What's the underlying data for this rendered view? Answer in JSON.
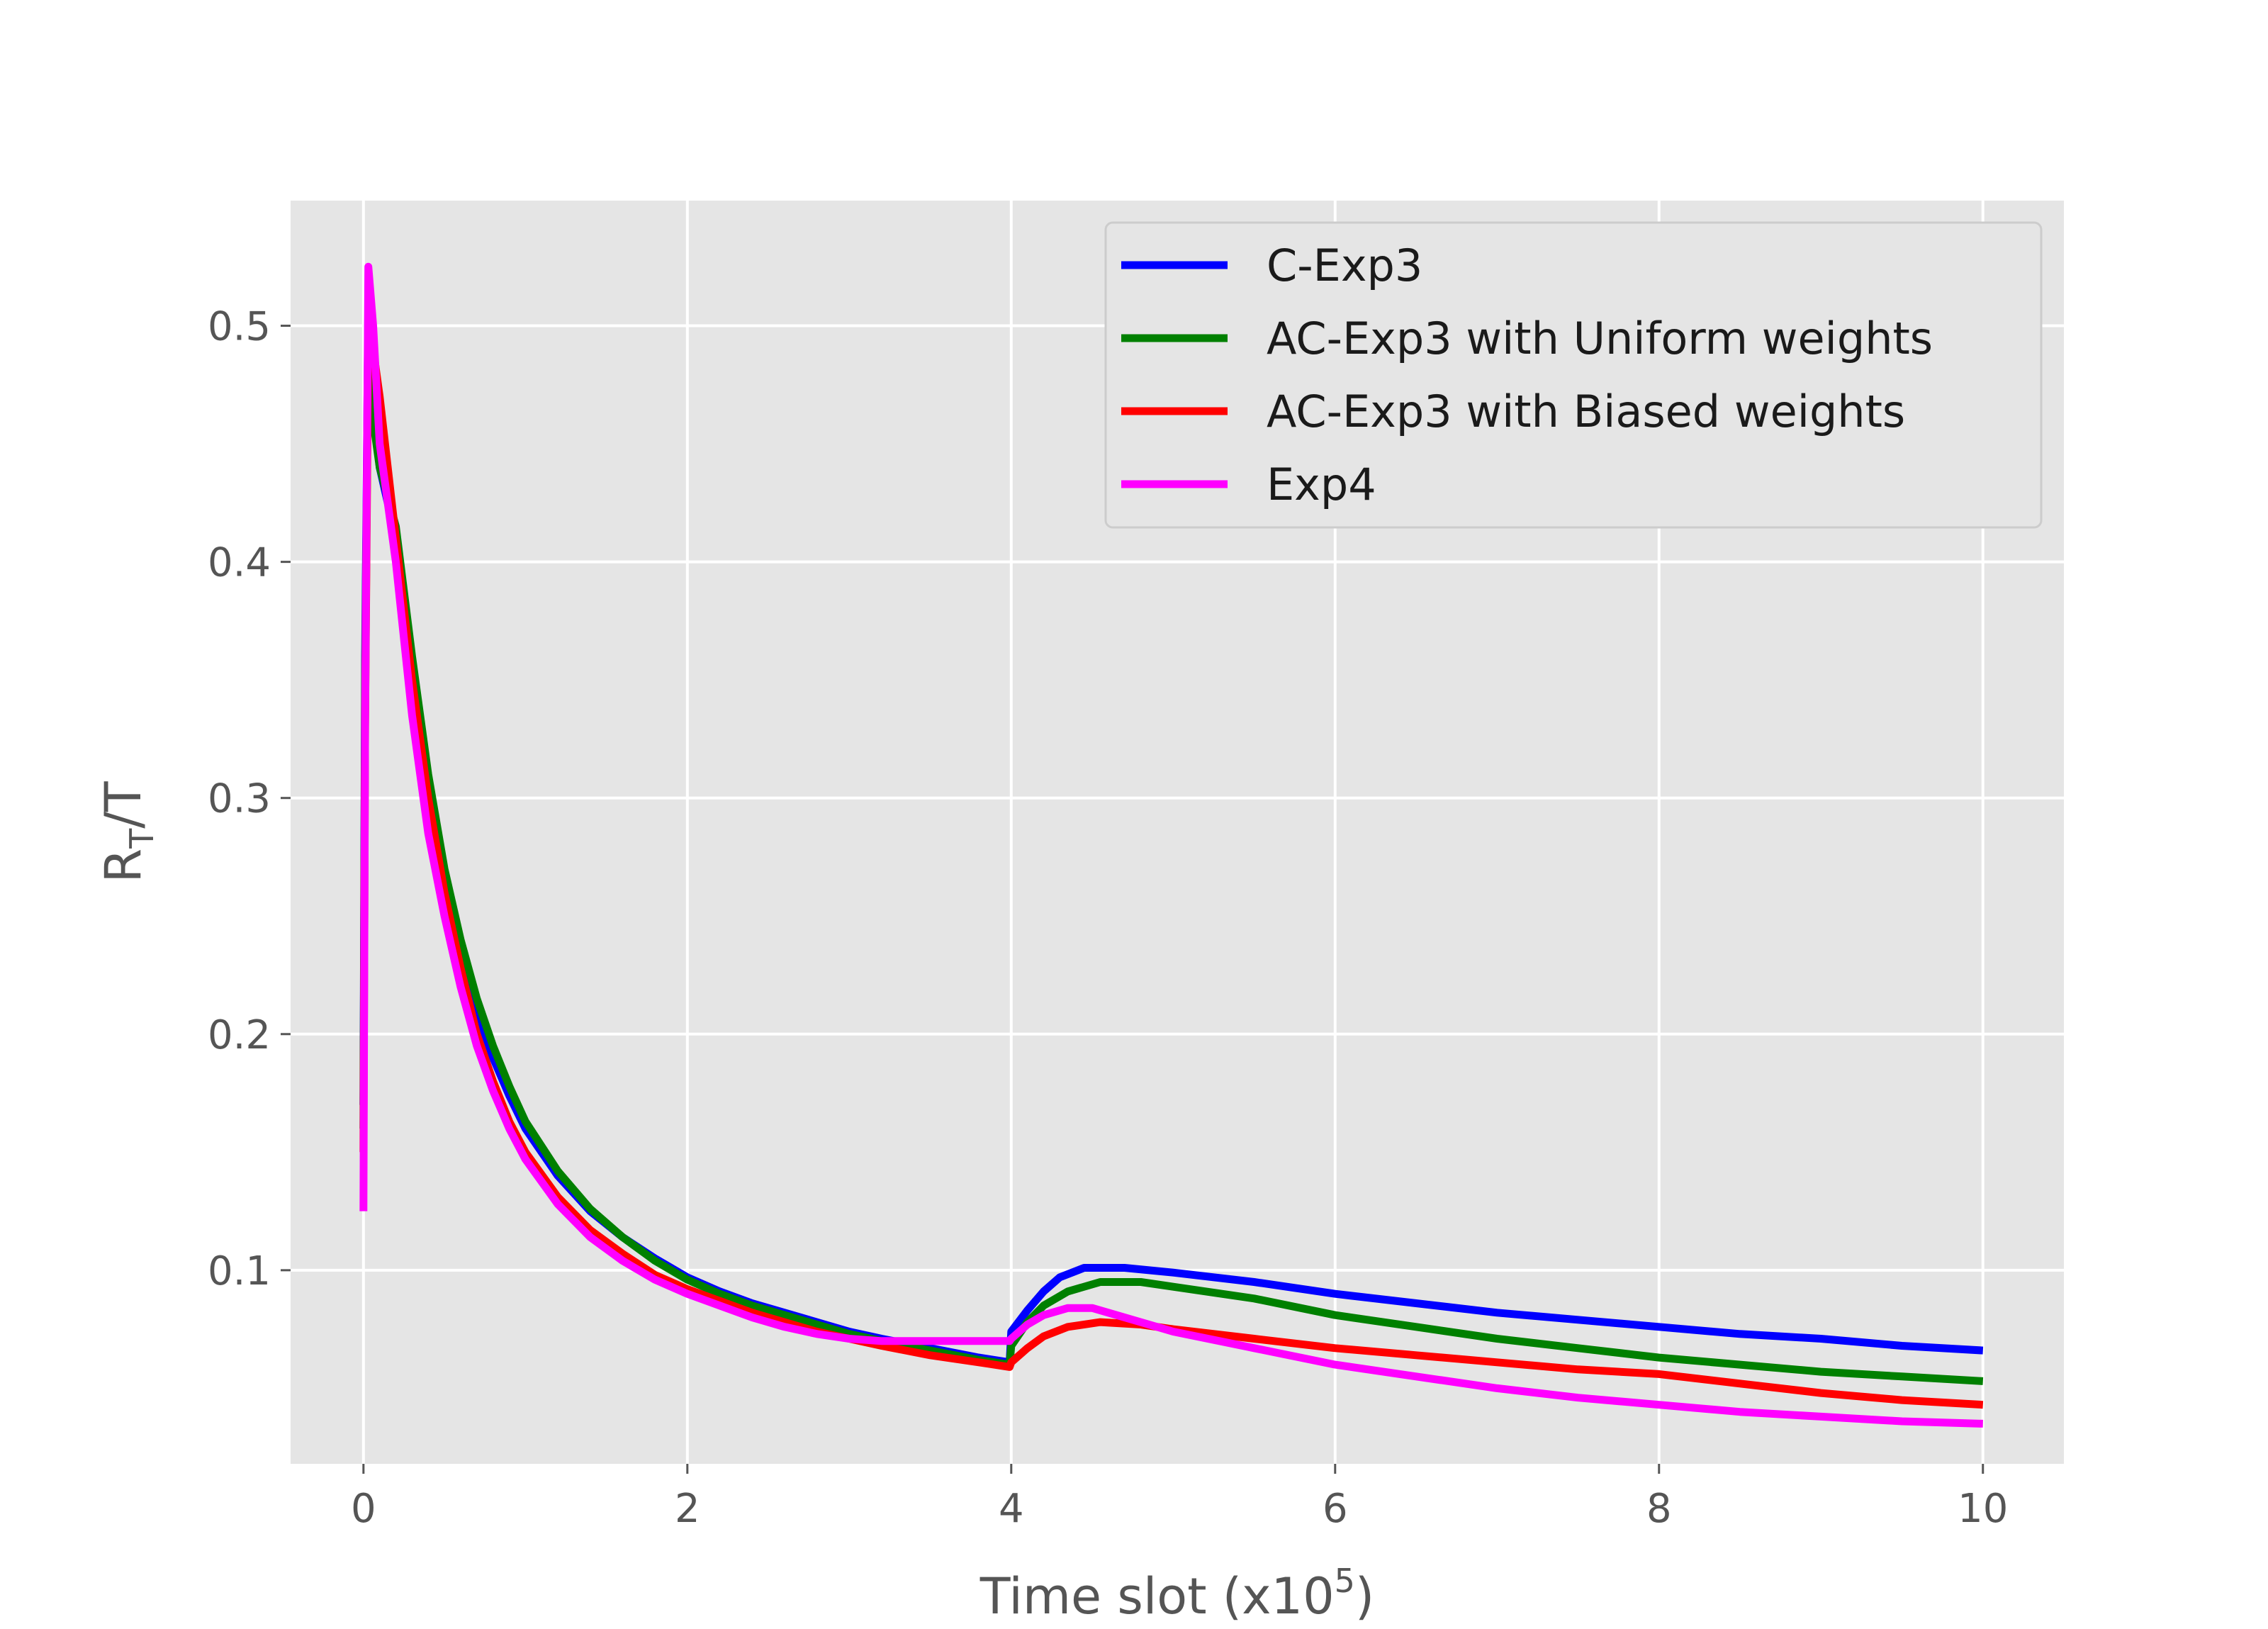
{
  "chart_data": {
    "type": "line",
    "xlabel_parts": {
      "main": "Time slot (x10",
      "sup": "5",
      "tail": ")"
    },
    "ylabel_parts": {
      "main": "R",
      "sub": "T",
      "tail": "/T"
    },
    "xlim": [
      -0.45,
      10.5
    ],
    "ylim": [
      0.018,
      0.553
    ],
    "xticks": [
      0,
      2,
      4,
      6,
      8,
      10
    ],
    "xtick_labels": [
      "0",
      "2",
      "4",
      "6",
      "8",
      "10"
    ],
    "yticks": [
      0.1,
      0.2,
      0.3,
      0.4,
      0.5
    ],
    "ytick_labels": [
      "0.1",
      "0.2",
      "0.3",
      "0.4",
      "0.5"
    ],
    "grid": true,
    "legend_position": "top-right",
    "series": [
      {
        "name": "C-Exp3",
        "color": "#0000ff",
        "points": [
          [
            0,
            0.17
          ],
          [
            0.01,
            0.36
          ],
          [
            0.03,
            0.51
          ],
          [
            0.06,
            0.47
          ],
          [
            0.1,
            0.44
          ],
          [
            0.2,
            0.41
          ],
          [
            0.3,
            0.35
          ],
          [
            0.4,
            0.3
          ],
          [
            0.5,
            0.265
          ],
          [
            0.6,
            0.235
          ],
          [
            0.7,
            0.21
          ],
          [
            0.8,
            0.19
          ],
          [
            0.9,
            0.174
          ],
          [
            1.0,
            0.16
          ],
          [
            1.2,
            0.14
          ],
          [
            1.4,
            0.125
          ],
          [
            1.6,
            0.114
          ],
          [
            1.8,
            0.105
          ],
          [
            2.0,
            0.097
          ],
          [
            2.2,
            0.091
          ],
          [
            2.4,
            0.086
          ],
          [
            2.6,
            0.082
          ],
          [
            2.8,
            0.078
          ],
          [
            3.0,
            0.074
          ],
          [
            3.2,
            0.071
          ],
          [
            3.5,
            0.067
          ],
          [
            3.8,
            0.063
          ],
          [
            3.99,
            0.061
          ],
          [
            4.0,
            0.074
          ],
          [
            4.1,
            0.083
          ],
          [
            4.2,
            0.091
          ],
          [
            4.3,
            0.097
          ],
          [
            4.45,
            0.101
          ],
          [
            4.7,
            0.101
          ],
          [
            5.0,
            0.099
          ],
          [
            5.5,
            0.095
          ],
          [
            6.0,
            0.09
          ],
          [
            6.5,
            0.086
          ],
          [
            7.0,
            0.082
          ],
          [
            7.5,
            0.079
          ],
          [
            8.0,
            0.076
          ],
          [
            8.5,
            0.073
          ],
          [
            9.0,
            0.071
          ],
          [
            9.5,
            0.068
          ],
          [
            10.0,
            0.066
          ]
        ]
      },
      {
        "name": "AC-Exp3 with Uniform weights",
        "color": "#008000",
        "points": [
          [
            0,
            0.16
          ],
          [
            0.01,
            0.35
          ],
          [
            0.03,
            0.5
          ],
          [
            0.06,
            0.46
          ],
          [
            0.1,
            0.44
          ],
          [
            0.2,
            0.415
          ],
          [
            0.3,
            0.36
          ],
          [
            0.4,
            0.31
          ],
          [
            0.5,
            0.27
          ],
          [
            0.6,
            0.24
          ],
          [
            0.7,
            0.215
          ],
          [
            0.8,
            0.195
          ],
          [
            0.9,
            0.178
          ],
          [
            1.0,
            0.163
          ],
          [
            1.2,
            0.142
          ],
          [
            1.4,
            0.126
          ],
          [
            1.6,
            0.114
          ],
          [
            1.8,
            0.104
          ],
          [
            2.0,
            0.096
          ],
          [
            2.2,
            0.09
          ],
          [
            2.4,
            0.085
          ],
          [
            2.6,
            0.081
          ],
          [
            2.8,
            0.077
          ],
          [
            3.0,
            0.073
          ],
          [
            3.2,
            0.07
          ],
          [
            3.5,
            0.066
          ],
          [
            3.8,
            0.062
          ],
          [
            3.99,
            0.06
          ],
          [
            4.0,
            0.068
          ],
          [
            4.1,
            0.078
          ],
          [
            4.2,
            0.085
          ],
          [
            4.35,
            0.091
          ],
          [
            4.55,
            0.095
          ],
          [
            4.8,
            0.095
          ],
          [
            5.0,
            0.093
          ],
          [
            5.5,
            0.088
          ],
          [
            6.0,
            0.081
          ],
          [
            6.5,
            0.076
          ],
          [
            7.0,
            0.071
          ],
          [
            7.5,
            0.067
          ],
          [
            8.0,
            0.063
          ],
          [
            8.5,
            0.06
          ],
          [
            9.0,
            0.057
          ],
          [
            9.5,
            0.055
          ],
          [
            10.0,
            0.053
          ]
        ]
      },
      {
        "name": "AC-Exp3 with Biased weights",
        "color": "#ff0000",
        "points": [
          [
            0,
            0.15
          ],
          [
            0.01,
            0.33
          ],
          [
            0.03,
            0.5
          ],
          [
            0.06,
            0.49
          ],
          [
            0.1,
            0.47
          ],
          [
            0.2,
            0.41
          ],
          [
            0.3,
            0.35
          ],
          [
            0.4,
            0.3
          ],
          [
            0.5,
            0.26
          ],
          [
            0.6,
            0.228
          ],
          [
            0.7,
            0.2
          ],
          [
            0.8,
            0.18
          ],
          [
            0.9,
            0.163
          ],
          [
            1.0,
            0.15
          ],
          [
            1.2,
            0.131
          ],
          [
            1.4,
            0.117
          ],
          [
            1.6,
            0.107
          ],
          [
            1.8,
            0.098
          ],
          [
            2.0,
            0.092
          ],
          [
            2.2,
            0.087
          ],
          [
            2.4,
            0.082
          ],
          [
            2.6,
            0.078
          ],
          [
            2.8,
            0.074
          ],
          [
            3.0,
            0.071
          ],
          [
            3.2,
            0.068
          ],
          [
            3.5,
            0.064
          ],
          [
            3.8,
            0.061
          ],
          [
            3.99,
            0.059
          ],
          [
            4.0,
            0.061
          ],
          [
            4.1,
            0.067
          ],
          [
            4.2,
            0.072
          ],
          [
            4.35,
            0.076
          ],
          [
            4.55,
            0.078
          ],
          [
            4.8,
            0.077
          ],
          [
            5.0,
            0.075
          ],
          [
            5.5,
            0.071
          ],
          [
            6.0,
            0.067
          ],
          [
            6.5,
            0.064
          ],
          [
            7.0,
            0.061
          ],
          [
            7.5,
            0.058
          ],
          [
            8.0,
            0.056
          ],
          [
            8.5,
            0.052
          ],
          [
            9.0,
            0.048
          ],
          [
            9.5,
            0.045
          ],
          [
            10.0,
            0.043
          ]
        ]
      },
      {
        "name": "Exp4",
        "color": "#ff00ff",
        "points": [
          [
            0,
            0.125
          ],
          [
            0.01,
            0.33
          ],
          [
            0.03,
            0.525
          ],
          [
            0.06,
            0.5
          ],
          [
            0.1,
            0.45
          ],
          [
            0.2,
            0.4
          ],
          [
            0.3,
            0.335
          ],
          [
            0.4,
            0.285
          ],
          [
            0.5,
            0.25
          ],
          [
            0.6,
            0.22
          ],
          [
            0.7,
            0.195
          ],
          [
            0.8,
            0.176
          ],
          [
            0.9,
            0.16
          ],
          [
            1.0,
            0.147
          ],
          [
            1.2,
            0.128
          ],
          [
            1.4,
            0.114
          ],
          [
            1.6,
            0.104
          ],
          [
            1.8,
            0.096
          ],
          [
            2.0,
            0.09
          ],
          [
            2.2,
            0.085
          ],
          [
            2.4,
            0.08
          ],
          [
            2.6,
            0.076
          ],
          [
            2.8,
            0.073
          ],
          [
            3.0,
            0.071
          ],
          [
            3.2,
            0.07
          ],
          [
            3.5,
            0.07
          ],
          [
            3.8,
            0.07
          ],
          [
            3.99,
            0.07
          ],
          [
            4.0,
            0.071
          ],
          [
            4.1,
            0.077
          ],
          [
            4.2,
            0.081
          ],
          [
            4.35,
            0.084
          ],
          [
            4.5,
            0.084
          ],
          [
            4.8,
            0.078
          ],
          [
            5.0,
            0.074
          ],
          [
            5.5,
            0.067
          ],
          [
            6.0,
            0.06
          ],
          [
            6.5,
            0.055
          ],
          [
            7.0,
            0.05
          ],
          [
            7.5,
            0.046
          ],
          [
            8.0,
            0.043
          ],
          [
            8.5,
            0.04
          ],
          [
            9.0,
            0.038
          ],
          [
            9.5,
            0.036
          ],
          [
            10.0,
            0.035
          ]
        ]
      }
    ]
  }
}
